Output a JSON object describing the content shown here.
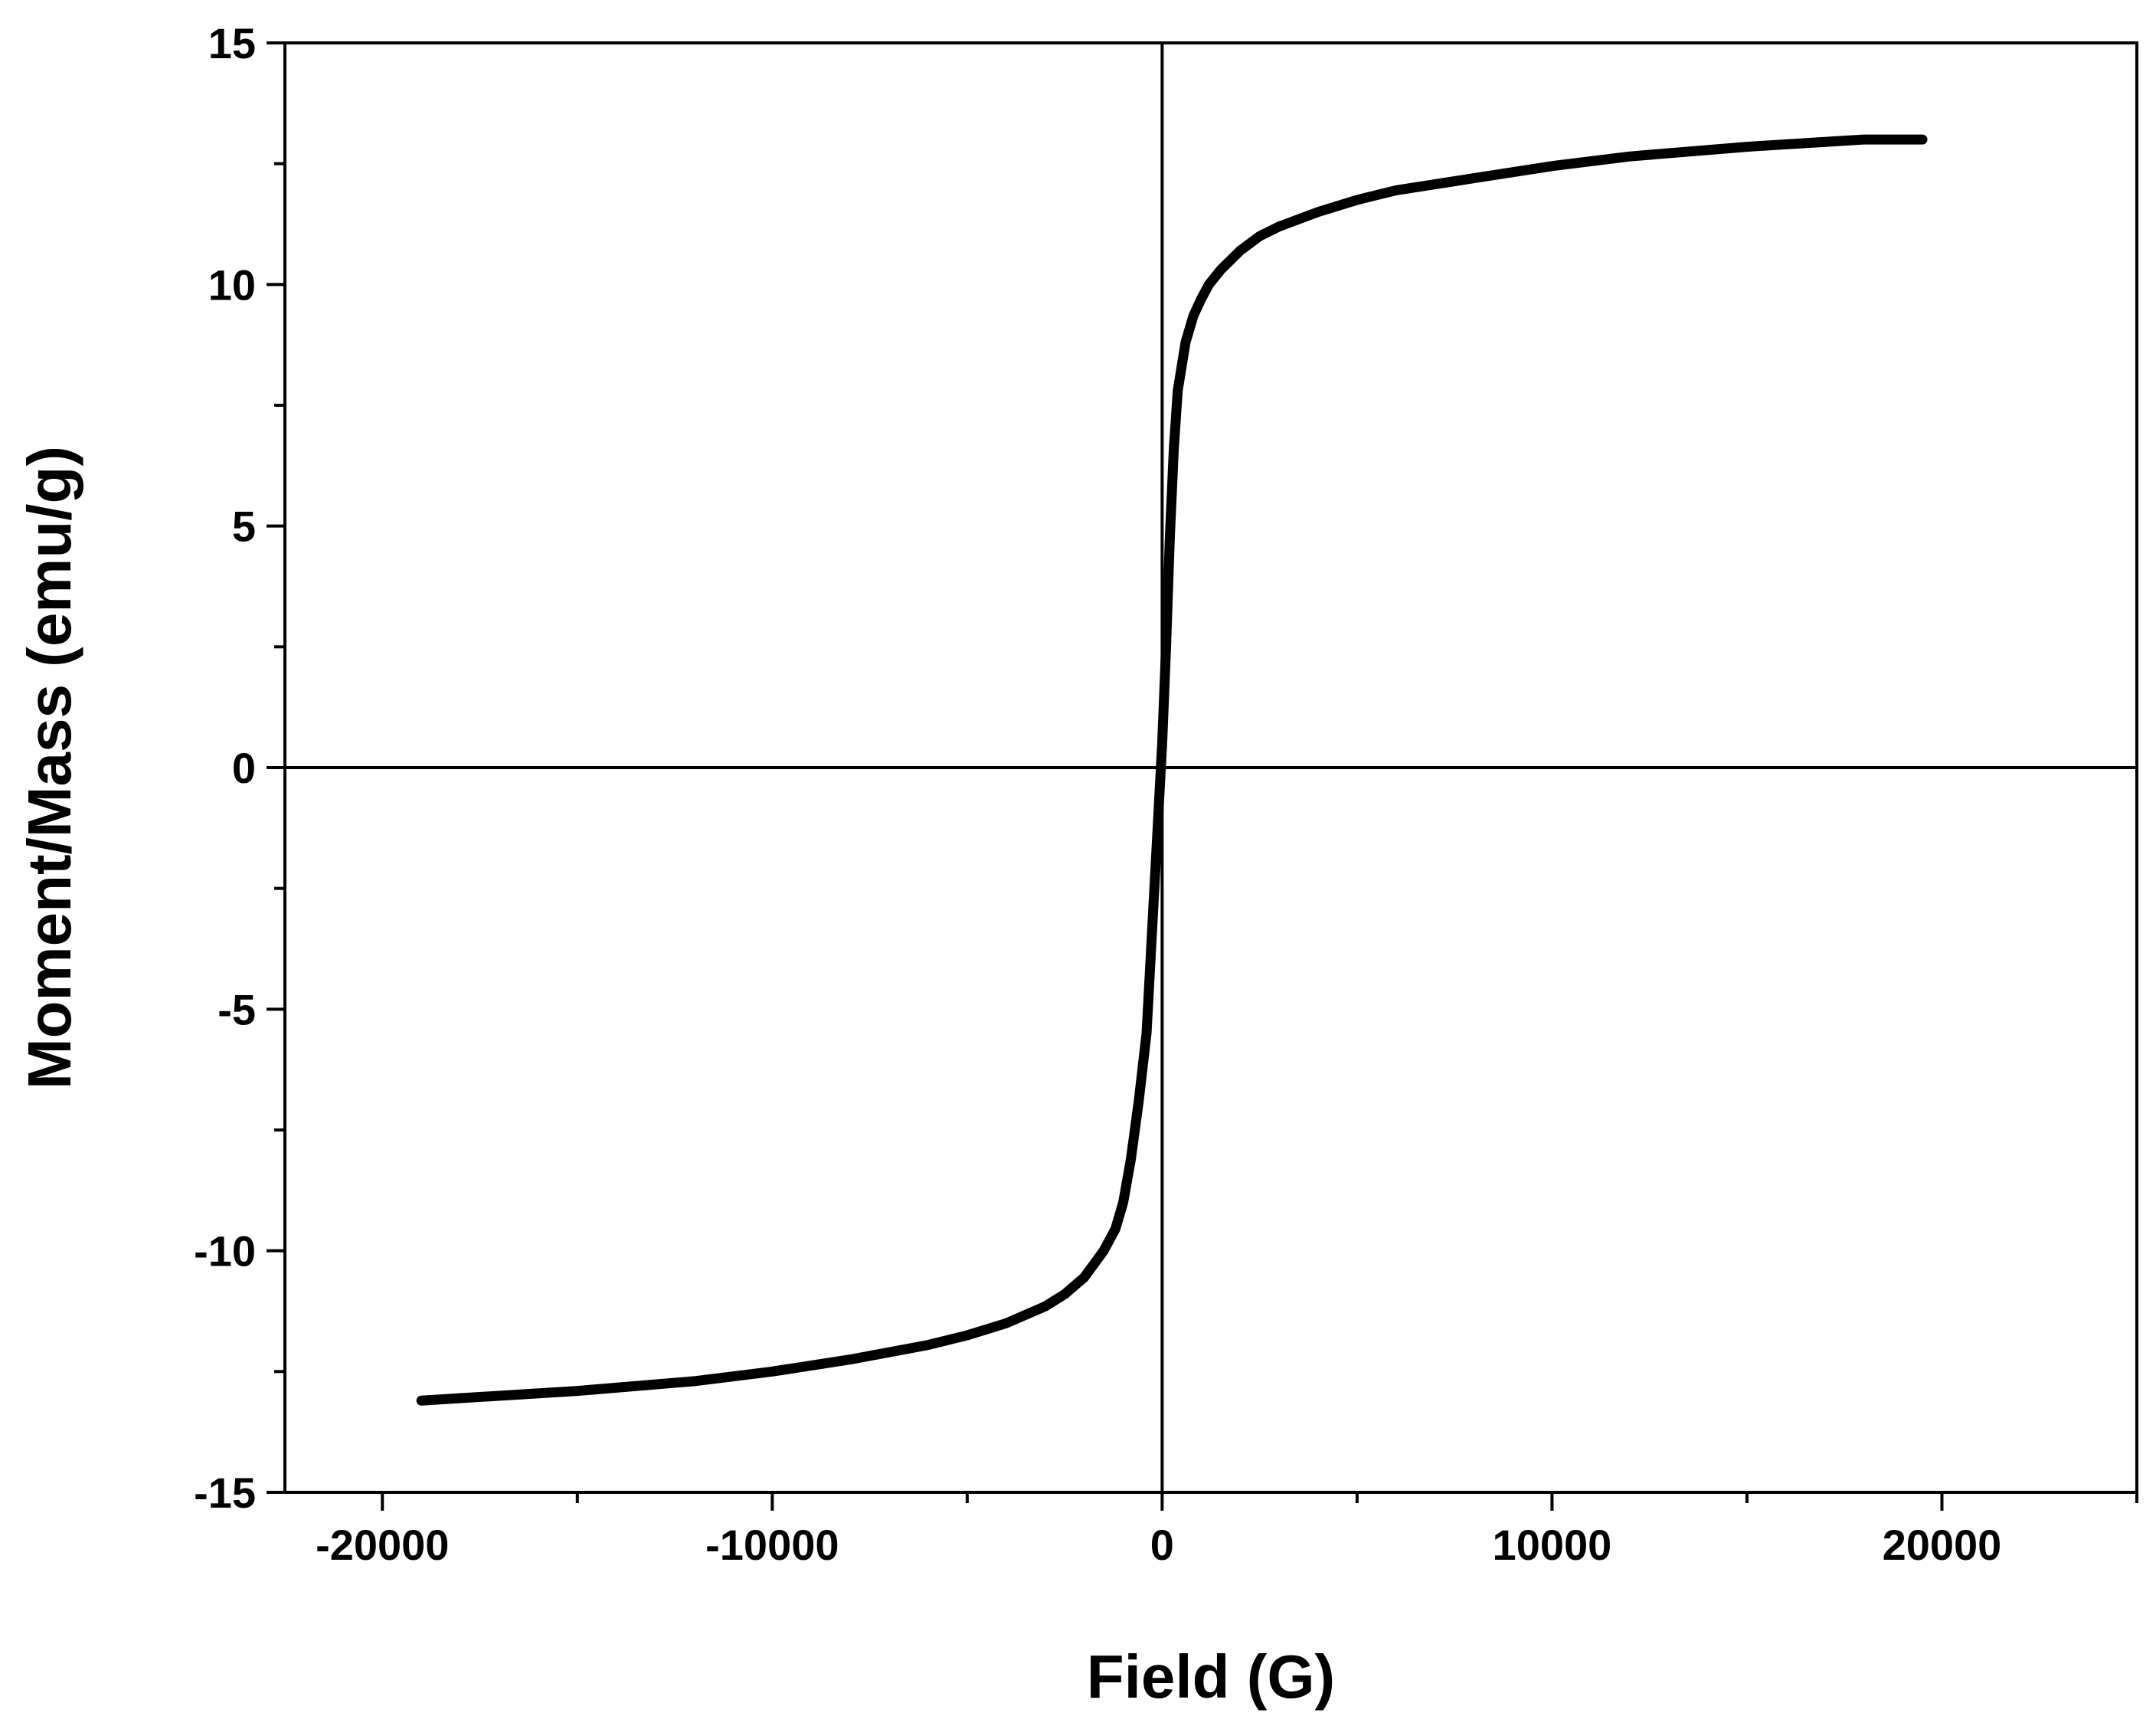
{
  "chart_data": {
    "type": "line",
    "title": "",
    "xlabel": "Field (G)",
    "ylabel": "Moment/Mass (emu/g)",
    "xlim": [
      -22500,
      25000
    ],
    "ylim": [
      -15,
      15
    ],
    "x_ticks": [
      -20000,
      -10000,
      0,
      10000,
      20000
    ],
    "x_tick_labels": [
      "-20000",
      "-10000",
      "0",
      "10000",
      "20000"
    ],
    "y_ticks": [
      -15,
      -10,
      -5,
      0,
      5,
      10,
      15
    ],
    "y_tick_labels": [
      "-15",
      "-10",
      "-5",
      "0",
      "5",
      "10",
      "15"
    ],
    "zero_lines": true,
    "grid": false,
    "legend": "none",
    "line_color": "#000000",
    "series": [
      {
        "x": [
          -19000,
          -15000,
          -12000,
          -10000,
          -8000,
          -6000,
          -5000,
          -4000,
          -3000,
          -2500,
          -2000,
          -1500,
          -1200,
          -1000,
          -800,
          -600,
          -400,
          -300,
          -200,
          -100,
          0,
          100,
          200,
          300,
          400,
          600,
          800,
          1000,
          1200,
          1500,
          2000,
          2500,
          3000,
          4000,
          5000,
          6000,
          8000,
          10000,
          12000,
          15000,
          18000,
          19500
        ],
        "y": [
          -13.1,
          -12.9,
          -12.7,
          -12.5,
          -12.25,
          -11.95,
          -11.75,
          -11.5,
          -11.15,
          -10.9,
          -10.55,
          -10.0,
          -9.55,
          -9.0,
          -8.1,
          -6.9,
          -5.5,
          -4.0,
          -2.5,
          -1.0,
          0.5,
          2.5,
          4.8,
          6.6,
          7.8,
          8.8,
          9.35,
          9.7,
          10.0,
          10.3,
          10.7,
          11.0,
          11.2,
          11.5,
          11.75,
          11.95,
          12.2,
          12.45,
          12.65,
          12.85,
          13.0,
          13.0
        ]
      }
    ]
  }
}
